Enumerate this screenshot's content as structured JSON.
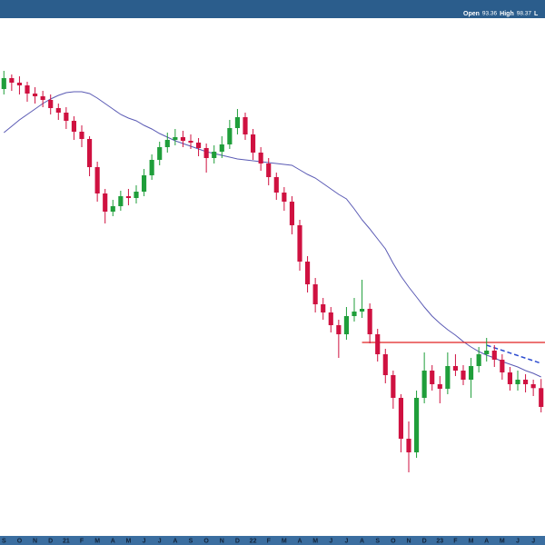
{
  "header": {
    "items": [
      "Open",
      "93.36",
      "High",
      "98.37",
      "L"
    ]
  },
  "chart_data": {
    "type": "candlestick",
    "categories": [
      "S",
      null,
      "O",
      null,
      "N",
      null,
      "D",
      null,
      "21",
      null,
      "F",
      null,
      "M",
      null,
      "A",
      null,
      "M",
      null,
      "J",
      null,
      "J",
      null,
      "A",
      null,
      "S",
      null,
      "O",
      null,
      "N",
      null,
      "D",
      null,
      "22",
      null,
      "F",
      null,
      "M",
      null,
      "A",
      null,
      "M",
      null,
      "J",
      null,
      "J",
      null,
      "A",
      null,
      "S",
      null,
      "O",
      null,
      "N",
      null,
      "D",
      null,
      "23",
      null,
      "F",
      null,
      "M",
      null,
      "A",
      null,
      "M",
      null,
      "J",
      null,
      "J",
      null
    ],
    "open": [
      258,
      264,
      261.5,
      260,
      255.5,
      254,
      252,
      247.5,
      245,
      240.5,
      234.5,
      230.5,
      215,
      200.5,
      190.5,
      193.5,
      199,
      198,
      201.5,
      210.5,
      219,
      226,
      230,
      231.5,
      229.5,
      228.5,
      225.5,
      220,
      223.5,
      227.5,
      236.5,
      242.5,
      233,
      223,
      217,
      209.5,
      201,
      196,
      183,
      163,
      150.5,
      139.5,
      135,
      128,
      123,
      133,
      135.5,
      137,
      123,
      112,
      100.5,
      88,
      65.5,
      58,
      88,
      103,
      95.5,
      93,
      105.5,
      103,
      98,
      105.5,
      112,
      114,
      109,
      102,
      95.5,
      98,
      95.5,
      93.36
    ],
    "high": [
      268,
      266,
      265,
      262,
      259,
      257,
      255,
      250,
      248,
      243,
      238,
      232,
      218,
      203,
      197,
      202,
      203,
      205,
      214,
      222,
      229,
      234,
      236,
      235,
      233,
      231,
      228,
      227,
      232,
      241,
      247,
      245,
      236,
      226,
      220,
      212,
      204,
      199,
      186,
      166,
      154,
      143,
      138,
      131,
      138,
      143,
      153,
      140,
      126,
      115,
      103,
      90,
      75,
      92,
      113,
      106,
      100,
      113,
      112,
      106,
      110,
      116,
      121,
      117,
      112,
      105,
      103,
      101,
      98,
      98.37
    ],
    "low": [
      255,
      257,
      255,
      251,
      250,
      248,
      244,
      241,
      236,
      230,
      226,
      210,
      196,
      184,
      188,
      191,
      194,
      195,
      199,
      208,
      216,
      223,
      227,
      226,
      225,
      221,
      212,
      217,
      220,
      225,
      233,
      230,
      219,
      213,
      205,
      197,
      191,
      178,
      158,
      146,
      135,
      131,
      124,
      110,
      120,
      130,
      132,
      118,
      108,
      96,
      82,
      58,
      47,
      55,
      85,
      92,
      85,
      90,
      100,
      95,
      88,
      102,
      108,
      105,
      98,
      92,
      92,
      91,
      89,
      80
    ],
    "close": [
      264,
      261.5,
      260,
      255.5,
      254,
      252,
      247.5,
      245,
      240.5,
      234.5,
      230.5,
      215,
      200.5,
      190.5,
      193.5,
      199,
      198,
      201.5,
      210.5,
      219,
      226,
      230,
      231.5,
      229.5,
      228.5,
      225.5,
      220,
      223.5,
      227.5,
      236.5,
      242.5,
      233,
      223,
      217,
      209.5,
      201,
      196,
      183,
      163,
      150.5,
      139.5,
      135,
      128,
      123,
      133,
      135.5,
      137,
      123,
      112,
      100.5,
      88,
      65.5,
      58,
      88,
      103,
      95.5,
      93,
      105.5,
      103,
      98,
      105.5,
      112,
      114,
      109,
      102,
      95.5,
      98,
      95.5,
      93.36,
      83
    ],
    "up_color": "#1f9e3a",
    "down_color": "#cf1140",
    "ma": {
      "color": "#5a5ab4",
      "values": [
        234,
        237.5,
        241,
        244,
        247,
        250,
        252.5,
        254.5,
        256,
        256.5,
        256.5,
        255.5,
        253,
        250,
        247,
        244,
        242,
        240.5,
        238,
        236,
        233.5,
        231.5,
        229.5,
        228,
        226.5,
        225,
        223.5,
        222.5,
        221.5,
        220.5,
        219.5,
        219,
        218.5,
        218,
        217.5,
        217,
        216.5,
        216,
        213.5,
        211,
        209,
        206,
        203,
        200,
        197.5,
        192,
        186,
        181,
        175.5,
        170,
        162,
        155,
        149,
        143.5,
        138,
        133,
        129,
        125.5,
        122.5,
        119,
        116,
        113.5,
        111.5,
        110,
        108,
        106.5,
        105,
        103,
        101.5,
        99.5
      ]
    },
    "hline": {
      "value": 118.5,
      "start_index": 46,
      "color": "#e02020"
    },
    "trendline": {
      "color": "#2a4ad0",
      "indices": [
        62,
        69
      ],
      "values": [
        117,
        107
      ]
    }
  }
}
